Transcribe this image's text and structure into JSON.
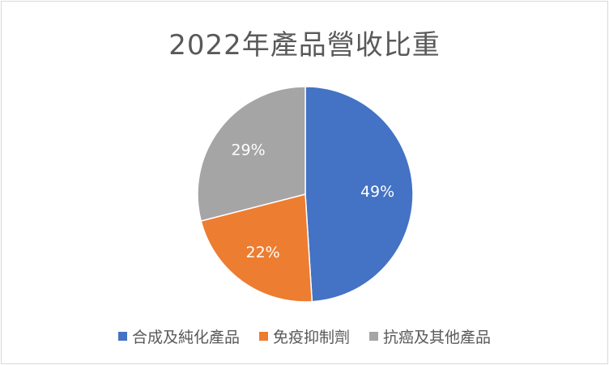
{
  "chart_data": {
    "type": "pie",
    "title": "2022年產品營收比重",
    "categories": [
      "合成及純化產品",
      "免疫抑制劑",
      "抗癌及其他產品"
    ],
    "values": [
      49,
      22,
      29
    ],
    "labels": [
      "49%",
      "22%",
      "29%"
    ],
    "colors": [
      "#4472c4",
      "#ed7d31",
      "#a5a5a5"
    ],
    "legend": "bottom",
    "start_angle_deg": 0,
    "direction": "clockwise"
  }
}
